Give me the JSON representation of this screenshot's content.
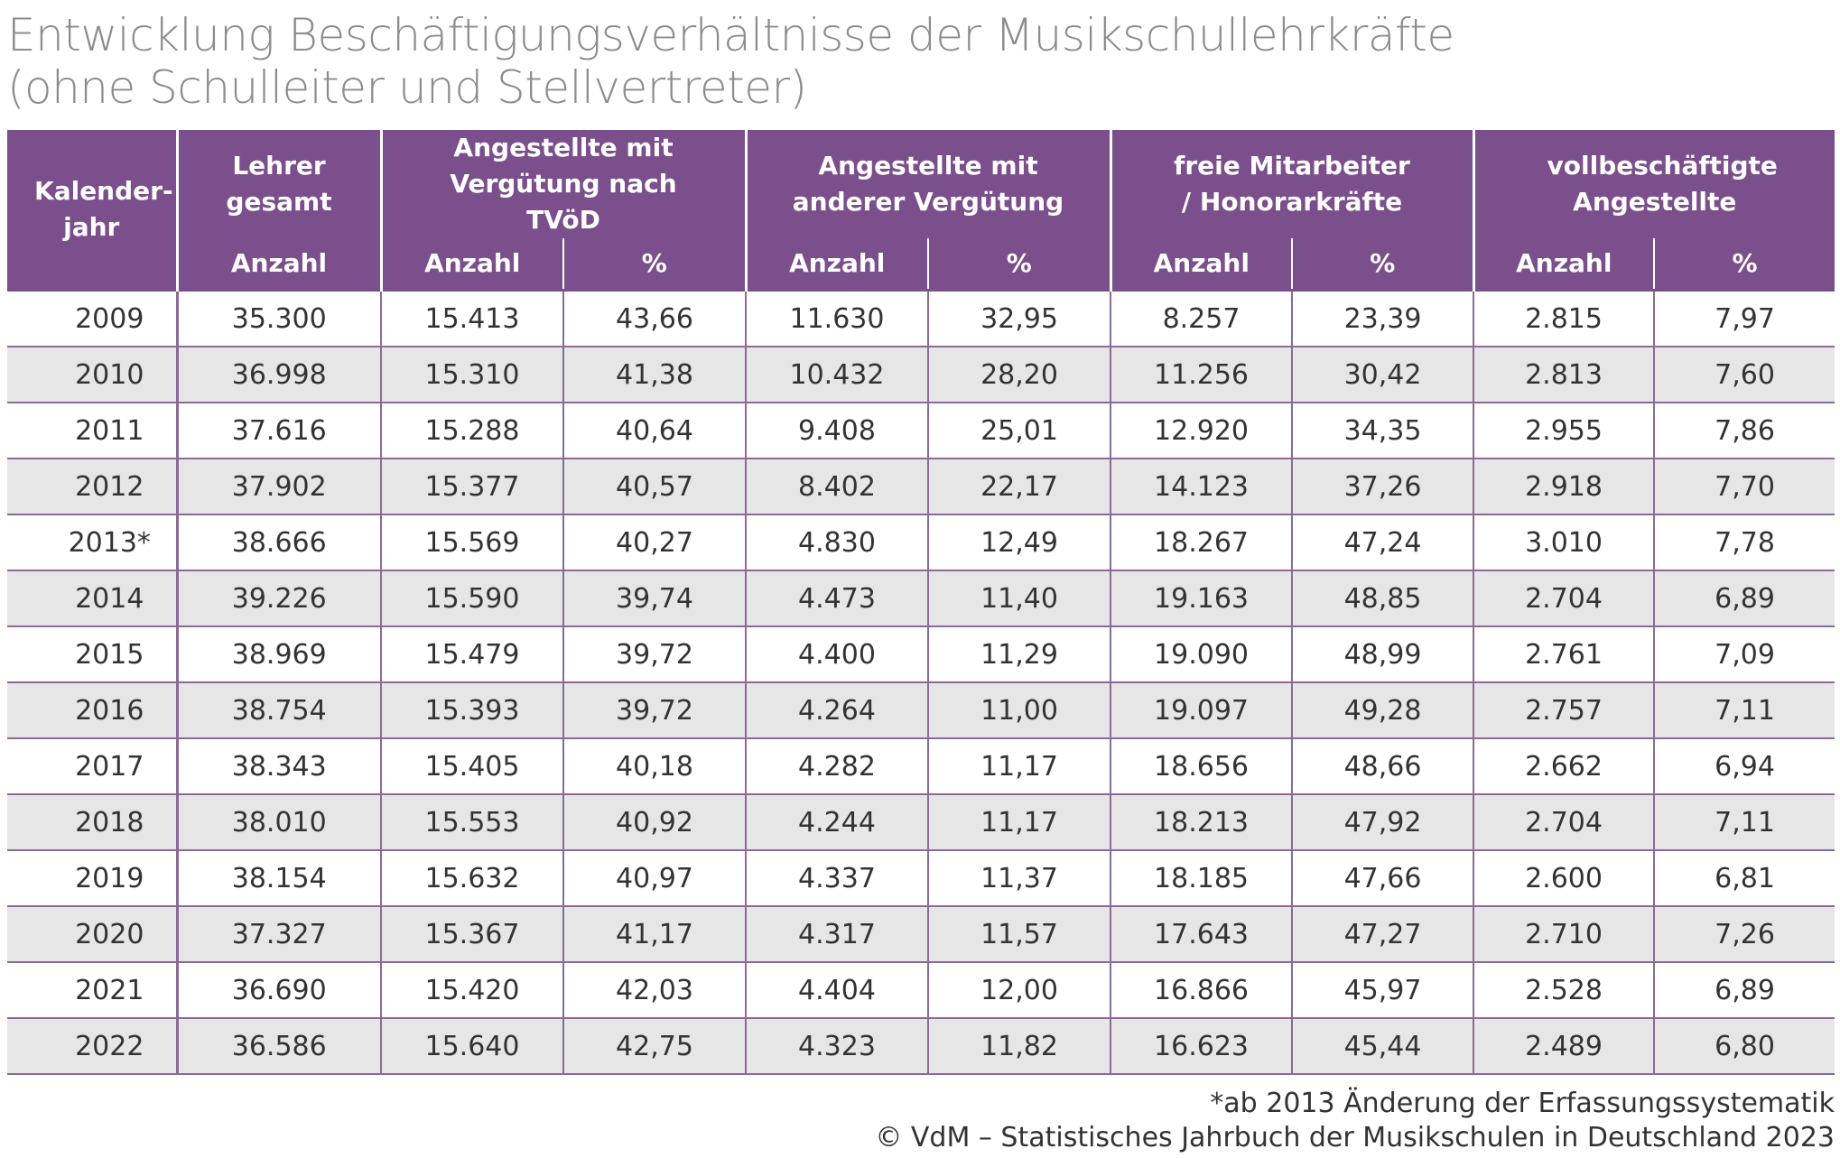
{
  "title": {
    "line1": "Entwicklung Beschäftigungsverhältnisse der Musikschullehrkräfte",
    "line2": "(ohne Schulleiter und Stellvertreter)"
  },
  "header": {
    "col_year": "Kalender-jahr",
    "groups": [
      "Lehrer gesamt",
      "Angestellte mit Vergütung nach TVöD",
      "Angestellte mit anderer Vergütung",
      "freie Mitarbeiter / Honorarkräfte",
      "vollbeschäftigte Angestellte"
    ],
    "sub_count": "Anzahl",
    "sub_percent": "%"
  },
  "rows": [
    [
      "2009",
      "35.300",
      "15.413",
      "43,66",
      "11.630",
      "32,95",
      "8.257",
      "23,39",
      "2.815",
      "7,97"
    ],
    [
      "2010",
      "36.998",
      "15.310",
      "41,38",
      "10.432",
      "28,20",
      "11.256",
      "30,42",
      "2.813",
      "7,60"
    ],
    [
      "2011",
      "37.616",
      "15.288",
      "40,64",
      "9.408",
      "25,01",
      "12.920",
      "34,35",
      "2.955",
      "7,86"
    ],
    [
      "2012",
      "37.902",
      "15.377",
      "40,57",
      "8.402",
      "22,17",
      "14.123",
      "37,26",
      "2.918",
      "7,70"
    ],
    [
      "2013*",
      "38.666",
      "15.569",
      "40,27",
      "4.830",
      "12,49",
      "18.267",
      "47,24",
      "3.010",
      "7,78"
    ],
    [
      "2014",
      "39.226",
      "15.590",
      "39,74",
      "4.473",
      "11,40",
      "19.163",
      "48,85",
      "2.704",
      "6,89"
    ],
    [
      "2015",
      "38.969",
      "15.479",
      "39,72",
      "4.400",
      "11,29",
      "19.090",
      "48,99",
      "2.761",
      "7,09"
    ],
    [
      "2016",
      "38.754",
      "15.393",
      "39,72",
      "4.264",
      "11,00",
      "19.097",
      "49,28",
      "2.757",
      "7,11"
    ],
    [
      "2017",
      "38.343",
      "15.405",
      "40,18",
      "4.282",
      "11,17",
      "18.656",
      "48,66",
      "2.662",
      "6,94"
    ],
    [
      "2018",
      "38.010",
      "15.553",
      "40,92",
      "4.244",
      "11,17",
      "18.213",
      "47,92",
      "2.704",
      "7,11"
    ],
    [
      "2019",
      "38.154",
      "15.632",
      "40,97",
      "4.337",
      "11,37",
      "18.185",
      "47,66",
      "2.600",
      "6,81"
    ],
    [
      "2020",
      "37.327",
      "15.367",
      "41,17",
      "4.317",
      "11,57",
      "17.643",
      "47,27",
      "2.710",
      "7,26"
    ],
    [
      "2021",
      "36.690",
      "15.420",
      "42,03",
      "4.404",
      "12,00",
      "16.866",
      "45,97",
      "2.528",
      "6,89"
    ],
    [
      "2022",
      "36.586",
      "15.640",
      "42,75",
      "4.323",
      "11,82",
      "16.623",
      "45,44",
      "2.489",
      "6,80"
    ]
  ],
  "footer": {
    "note": "*ab 2013 Änderung der Erfassungssystematik",
    "source": "© VdM – Statistisches Jahrbuch der Musikschulen in Deutschland 2023"
  }
}
